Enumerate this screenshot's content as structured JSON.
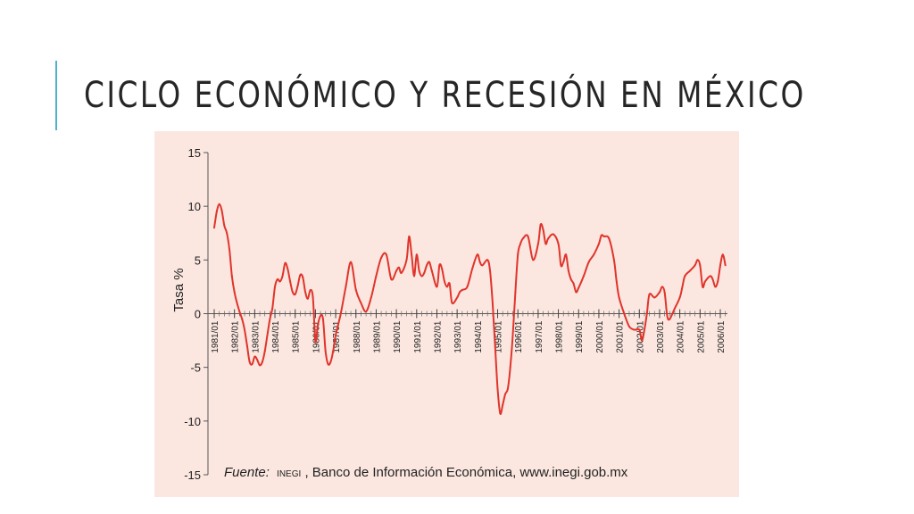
{
  "slide": {
    "title": "CICLO ECONÓMICO Y RECESIÓN EN MÉXICO",
    "accent_color": "#4eb3c4"
  },
  "chart_data": {
    "type": "line",
    "title": "",
    "ylabel": "Tasa %",
    "xlabel": "",
    "ylim": [
      -15,
      15
    ],
    "yticks": [
      15,
      10,
      5,
      0,
      -5,
      -10,
      -15
    ],
    "categories": [
      "1981/01",
      "1982/01",
      "1983/01",
      "1984/01",
      "1985/01",
      "1986/01",
      "1987/01",
      "1988/01",
      "1989/01",
      "1990/01",
      "1991/01",
      "1992/01",
      "1993/01",
      "1994/01",
      "1995/01",
      "1996/01",
      "1997/01",
      "1998/01",
      "1999/01",
      "2000/01",
      "2001/01",
      "2002/01",
      "2003/01",
      "2004/01",
      "2005/01",
      "2006/01"
    ],
    "source": {
      "prefix": "Fuente:",
      "org": "INEGI",
      "text": ", Banco de Información Económica, www.inegi.gob.mx"
    },
    "background": "#fbe7e0",
    "line_color": "#e0342b",
    "grid": false,
    "series": [
      {
        "name": "",
        "x": [
          1981.0,
          1981.125,
          1981.25,
          1981.375,
          1981.5,
          1981.625,
          1981.75,
          1981.875,
          1982.0,
          1982.125,
          1982.25,
          1982.375,
          1982.5,
          1982.625,
          1982.75,
          1982.875,
          1983.0,
          1983.125,
          1983.25,
          1983.375,
          1983.5,
          1983.625,
          1983.75,
          1983.875,
          1984.0,
          1984.125,
          1984.25,
          1984.375,
          1984.5,
          1984.625,
          1984.75,
          1984.875,
          1985.0,
          1985.125,
          1985.25,
          1985.375,
          1985.5,
          1985.625,
          1985.75,
          1985.875,
          1986.0,
          1986.125,
          1986.25,
          1986.375,
          1986.5,
          1986.625,
          1986.75,
          1986.875,
          1987.0,
          1987.25,
          1987.5,
          1987.75,
          1988.0,
          1988.25,
          1988.5,
          1988.75,
          1989.0,
          1989.25,
          1989.5,
          1989.75,
          1990.0,
          1990.125,
          1990.25,
          1990.5,
          1990.625,
          1990.75,
          1990.875,
          1991.0,
          1991.125,
          1991.25,
          1991.375,
          1991.5,
          1991.625,
          1991.75,
          1992.0,
          1992.125,
          1992.25,
          1992.375,
          1992.5,
          1992.625,
          1992.75,
          1993.0,
          1993.125,
          1993.25,
          1993.5,
          1993.75,
          1994.0,
          1994.125,
          1994.25,
          1994.5,
          1994.625,
          1994.75,
          1994.875,
          1995.0,
          1995.125,
          1995.25,
          1995.375,
          1995.5,
          1995.625,
          1995.75,
          1995.875,
          1996.0,
          1996.125,
          1996.25,
          1996.5,
          1996.75,
          1997.0,
          1997.125,
          1997.25,
          1997.375,
          1997.5,
          1997.75,
          1998.0,
          1998.125,
          1998.25,
          1998.375,
          1998.5,
          1998.625,
          1998.75,
          1998.875,
          1999.0,
          1999.25,
          1999.5,
          1999.75,
          2000.0,
          2000.125,
          2000.25,
          2000.5,
          2000.75,
          2000.875,
          2001.0,
          2001.25,
          2001.5,
          2001.75,
          2002.0,
          2002.125,
          2002.25,
          2002.375,
          2002.5,
          2002.75,
          2003.0,
          2003.125,
          2003.25,
          2003.375,
          2003.5,
          2003.75,
          2004.0,
          2004.125,
          2004.25,
          2004.5,
          2004.75,
          2004.875,
          2005.0,
          2005.125,
          2005.25,
          2005.5,
          2005.625,
          2005.75,
          2005.875,
          2006.0,
          2006.125,
          2006.25
        ],
        "y": [
          8.0,
          9.5,
          10.2,
          9.6,
          8.2,
          7.5,
          6.0,
          3.5,
          2.0,
          1.0,
          0.2,
          -0.5,
          -1.5,
          -3.0,
          -4.5,
          -4.7,
          -4.0,
          -4.3,
          -4.8,
          -4.5,
          -3.5,
          -2.0,
          -0.5,
          0.5,
          2.5,
          3.2,
          3.0,
          3.5,
          4.7,
          4.2,
          3.0,
          2.0,
          1.8,
          2.6,
          3.6,
          3.4,
          2.0,
          1.4,
          2.2,
          1.5,
          -2.6,
          -1.0,
          -0.2,
          -0.5,
          -3.5,
          -4.7,
          -4.5,
          -3.5,
          -2.0,
          0.0,
          2.5,
          4.8,
          2.2,
          1.0,
          0.2,
          1.5,
          3.5,
          5.2,
          5.5,
          3.2,
          4.0,
          4.3,
          3.8,
          5.0,
          7.2,
          5.5,
          3.5,
          5.5,
          4.0,
          3.5,
          3.8,
          4.5,
          4.8,
          4.0,
          2.5,
          4.5,
          4.2,
          3.0,
          2.5,
          2.8,
          1.0,
          1.5,
          2.0,
          2.2,
          2.5,
          4.2,
          5.5,
          4.8,
          4.5,
          5.0,
          4.0,
          1.0,
          -3.0,
          -7.0,
          -9.3,
          -8.5,
          -7.5,
          -7.0,
          -5.0,
          -2.0,
          2.0,
          5.5,
          6.5,
          7.0,
          7.2,
          5.0,
          6.5,
          8.3,
          7.8,
          6.5,
          7.0,
          7.4,
          6.5,
          4.5,
          4.8,
          5.5,
          4.0,
          3.2,
          2.8,
          2.0,
          2.4,
          3.5,
          4.8,
          5.5,
          6.5,
          7.3,
          7.2,
          7.0,
          5.0,
          3.0,
          1.5,
          0.0,
          -1.2,
          -1.5,
          -1.5,
          -2.5,
          -1.5,
          0.0,
          1.8,
          1.5,
          2.0,
          2.5,
          2.0,
          -0.2,
          -0.5,
          0.5,
          1.5,
          2.5,
          3.5,
          4.0,
          4.5,
          5.0,
          4.5,
          2.5,
          3.0,
          3.5,
          3.2,
          2.5,
          3.0,
          4.5,
          5.5,
          4.5
        ]
      }
    ]
  }
}
